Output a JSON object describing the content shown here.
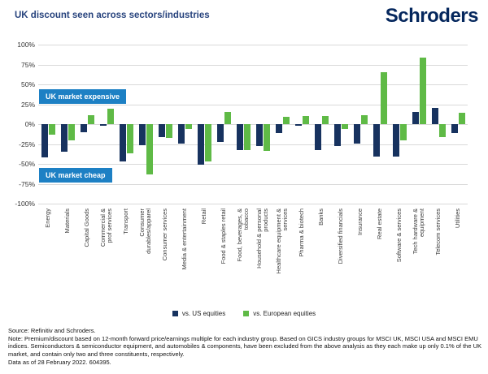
{
  "header": {
    "title": "UK discount seen across sectors/industries",
    "logo": "Schroders"
  },
  "colors": {
    "navy_bar": "#17325f",
    "green_bar": "#5fba46",
    "callout_blue": "#1d80c4",
    "title_navy": "#27437d",
    "logo_navy": "#05275d",
    "gridline": "#d9d9d9"
  },
  "chart_data": {
    "type": "bar",
    "title": "UK discount seen across sectors/industries",
    "xlabel": "",
    "ylabel": "",
    "ylim": [
      -100,
      100
    ],
    "ytick_step": 25,
    "ytick_format": "percent",
    "grid": true,
    "legend_position": "bottom-center",
    "categories": [
      "Energy",
      "Materials",
      "Capital Goods",
      "Commercial &\nprof services",
      "Transport",
      "Consumer\ndurables/apparel",
      "Consumer services",
      "Media & entertainment",
      "Retail",
      "Food & staples retail",
      "Food, beverages, &\ntobacco",
      "Household & personal\nproducts",
      "Healthcare equipment &\nservices",
      "Pharma & biotech",
      "Banks",
      "Diversified financials",
      "Insurance",
      "Real estate",
      "Software & services",
      "Tech hardware &\nequipment",
      "Telecom services",
      "Utilities"
    ],
    "series": [
      {
        "name": "vs. US equities",
        "color": "#17325f",
        "values": [
          -42,
          -35,
          -10,
          -2,
          -47,
          -26,
          -16,
          -24,
          -51,
          -22,
          -33,
          -27,
          -11,
          -2,
          -33,
          -27,
          -24,
          -41,
          -41,
          15,
          20,
          -11
        ]
      },
      {
        "name": "vs. European equities",
        "color": "#5fba46",
        "values": [
          -13,
          -20,
          11,
          19,
          -37,
          -63,
          -17,
          -6,
          -47,
          15,
          -33,
          -34,
          9,
          10,
          10,
          -6,
          11,
          65,
          -20,
          84,
          -16,
          14
        ]
      }
    ],
    "annotations": [
      {
        "text": "UK market expensive"
      },
      {
        "text": "UK market cheap"
      }
    ]
  },
  "footer": {
    "source": "Source: Refinitiv and Schroders.",
    "note": "Note: Premium/discount based on 12-month forward price/earnings multiple for each industry group. Based on GICS industry groups for MSCI UK, MSCI USA and MSCI EMU indices. Semiconductors & semiconductor equipment, and automobiles & components, have been excluded from the above analysis as they each make up only 0.1% of the UK market, and contain only two and three constituents, respectively.",
    "data_as_of": "Data as of 28 February 2022. 604395."
  }
}
